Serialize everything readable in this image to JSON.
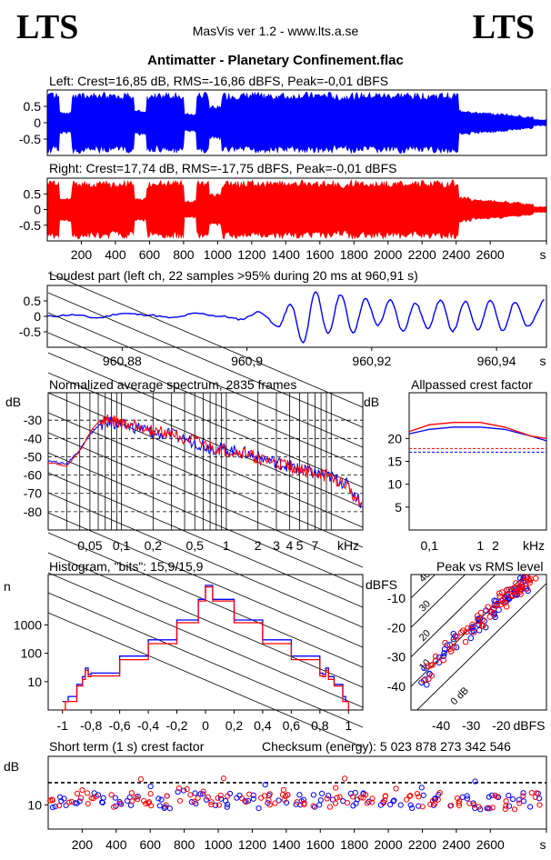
{
  "header": {
    "logo_left": "LTS",
    "logo_right": "LTS",
    "app": "MasVis ver 1.2 - www.lts.a.se",
    "file_title": "Antimatter - Planetary Confinement.flac"
  },
  "colors": {
    "left": "#0000ff",
    "right": "#ff0000",
    "axis": "#000000"
  },
  "chart_data": [
    {
      "type": "area",
      "id": "wave_left",
      "title": "Left: Crest=16,85 dB, RMS=-16,86 dBFS, Peak=-0,01 dBFS",
      "ylim": [
        -1,
        1
      ],
      "y_ticks": [
        "0.5",
        "0",
        "-0.5"
      ],
      "xlim": [
        0,
        2930
      ],
      "series": [
        {
          "name": "Left",
          "values": [
            0.97,
            0.35,
            0.98,
            0.95,
            0.98,
            0.9,
            0.97,
            0.4,
            0.93,
            0.98,
            0.97,
            0.3,
            0.98,
            0.55,
            0.97,
            0.96,
            0.98,
            0.96,
            0.97,
            0.94,
            0.98,
            0.97,
            0.98,
            0.9,
            0.98,
            0.97,
            0.98,
            0.96,
            0.98,
            0.95,
            0.98,
            0.97,
            0.98,
            0.42,
            0.35,
            0.32,
            0.3,
            0.25,
            0.2,
            0.1
          ]
        }
      ]
    },
    {
      "type": "area",
      "id": "wave_right",
      "title": "Right: Crest=17,74 dB, RMS=-17,75 dBFS, Peak=-0,01 dBFS",
      "ylim": [
        -1,
        1
      ],
      "y_ticks": [
        "0.5",
        "0",
        "-0.5"
      ],
      "x_ticks": [
        "200",
        "400",
        "600",
        "800",
        "1000",
        "1200",
        "1400",
        "1600",
        "1800",
        "2000",
        "2200",
        "2400",
        "2600",
        "s"
      ],
      "xlim": [
        0,
        2930
      ],
      "series": [
        {
          "name": "Right",
          "values": [
            0.97,
            0.4,
            0.98,
            0.95,
            0.98,
            0.9,
            0.97,
            0.4,
            0.93,
            0.98,
            0.97,
            0.3,
            0.98,
            0.55,
            0.97,
            0.96,
            0.98,
            0.96,
            0.97,
            0.94,
            0.98,
            0.97,
            0.98,
            0.9,
            0.98,
            0.97,
            0.98,
            0.96,
            0.98,
            0.95,
            0.98,
            0.97,
            0.98,
            0.42,
            0.35,
            0.32,
            0.3,
            0.25,
            0.2,
            0.1
          ]
        }
      ]
    },
    {
      "type": "line",
      "id": "loudest",
      "title": "Loudest part (left  ch, 22 samples >95% during 20 ms at 960,91 s)",
      "xlim": [
        960.868,
        960.948
      ],
      "ylim": [
        -1,
        1
      ],
      "y_ticks": [
        "0.5",
        "0",
        "-0.5"
      ],
      "x_ticks": [
        {
          "v": 960.88,
          "label": "960,88"
        },
        {
          "v": 960.9,
          "label": "960,9"
        },
        {
          "v": 960.92,
          "label": "960,92"
        },
        {
          "v": 960.94,
          "label": "960,94"
        }
      ],
      "x_unit": "s",
      "series": [
        {
          "name": "Left",
          "x": [
            960.868,
            960.872,
            960.876,
            960.88,
            960.884,
            960.888,
            960.892,
            960.896,
            960.899,
            960.902,
            960.905,
            960.907,
            960.909,
            960.911,
            960.913,
            960.915,
            960.917,
            960.919,
            960.921,
            960.923,
            960.925,
            960.927,
            960.929,
            960.931,
            960.933,
            960.935,
            960.937,
            960.939,
            960.941,
            960.943,
            960.945,
            960.948
          ],
          "y": [
            0.0,
            0.05,
            -0.05,
            0.1,
            0.05,
            -0.05,
            0.1,
            0.0,
            -0.1,
            0.15,
            -0.35,
            0.4,
            -0.9,
            0.85,
            -0.6,
            0.75,
            -0.55,
            0.6,
            -0.3,
            0.55,
            -0.5,
            0.45,
            -0.4,
            0.55,
            -0.5,
            0.5,
            -0.45,
            0.55,
            -0.5,
            0.5,
            -0.35,
            0.6
          ]
        }
      ]
    },
    {
      "type": "line",
      "id": "spectrum",
      "title": "Normalized average spectrum, 2835 frames",
      "ylabel": "dB",
      "xunit": "kHz",
      "xscale": "log",
      "xlim": [
        0.02,
        20
      ],
      "ylim": [
        -90,
        -15
      ],
      "y_ticks": [
        -30,
        -40,
        -50,
        -60,
        -70,
        -80
      ],
      "x_ticks": [
        {
          "v": 0.05,
          "label": "0,05"
        },
        {
          "v": 0.1,
          "label": "0,1"
        },
        {
          "v": 0.2,
          "label": "0,2"
        },
        {
          "v": 0.5,
          "label": "0,5"
        },
        {
          "v": 1,
          "label": "1"
        },
        {
          "v": 2,
          "label": "2"
        },
        {
          "v": 3,
          "label": "3"
        },
        {
          "v": 4,
          "label": "4"
        },
        {
          "v": 5,
          "label": "5"
        },
        {
          "v": 7,
          "label": "7"
        }
      ],
      "series": [
        {
          "name": "Left",
          "x": [
            0.02,
            0.03,
            0.04,
            0.05,
            0.06,
            0.08,
            0.1,
            0.15,
            0.2,
            0.3,
            0.5,
            0.7,
            1,
            1.5,
            2,
            3,
            4,
            5,
            7,
            10,
            14,
            20
          ],
          "y": [
            -52,
            -54,
            -46,
            -38,
            -33,
            -31,
            -33,
            -34,
            -37,
            -38,
            -42,
            -45,
            -46,
            -48,
            -50,
            -53,
            -55,
            -57,
            -59,
            -61,
            -65,
            -76
          ]
        },
        {
          "name": "Right",
          "x": [
            0.02,
            0.03,
            0.04,
            0.05,
            0.06,
            0.08,
            0.1,
            0.15,
            0.2,
            0.3,
            0.5,
            0.7,
            1,
            1.5,
            2,
            3,
            4,
            5,
            7,
            10,
            14,
            20
          ],
          "y": [
            -53,
            -55,
            -47,
            -37,
            -31,
            -30,
            -32,
            -33,
            -36,
            -37,
            -42,
            -45,
            -47,
            -48,
            -51,
            -54,
            -55,
            -57,
            -59,
            -61,
            -66,
            -77
          ]
        }
      ]
    },
    {
      "type": "line",
      "id": "allpassed",
      "title": "Allpassed crest factor",
      "ylabel": "dB",
      "xunit": "kHz",
      "xscale": "log",
      "xlim": [
        0.04,
        20
      ],
      "ylim": [
        0,
        30
      ],
      "y_ticks": [
        20,
        15,
        10,
        5
      ],
      "x_ticks": [
        {
          "v": 0.1,
          "label": "0,1"
        },
        {
          "v": 1,
          "label": "1"
        },
        {
          "v": 2,
          "label": "2"
        }
      ],
      "series": [
        {
          "name": "Left",
          "x": [
            0.04,
            0.1,
            0.3,
            1,
            3,
            10,
            20
          ],
          "y": [
            21.0,
            22.0,
            22.5,
            22.5,
            22.0,
            20.5,
            19.5
          ]
        },
        {
          "name": "Right",
          "x": [
            0.04,
            0.1,
            0.3,
            1,
            3,
            10,
            20
          ],
          "y": [
            21.5,
            23.0,
            23.5,
            23.5,
            22.5,
            20.5,
            20.0
          ]
        }
      ],
      "reference_lines": [
        {
          "name": "Left",
          "y": 17.0
        },
        {
          "name": "Right",
          "y": 17.8
        }
      ]
    },
    {
      "type": "line",
      "id": "histogram",
      "title": "Histogram, \"bits\": 15,9/15,9",
      "ylabel": "n",
      "yscale": "log",
      "xlim": [
        -1.1,
        1.1
      ],
      "ylim": [
        1,
        60000
      ],
      "y_ticks": [
        {
          "v": 1000,
          "label": "1000"
        },
        {
          "v": 100,
          "label": "100"
        },
        {
          "v": 10,
          "label": "10"
        }
      ],
      "x_ticks": [
        "-1",
        "-0,8",
        "-0,6",
        "-0,4",
        "-0,2",
        "0",
        "0,2",
        "0,4",
        "0,6",
        "0,8",
        "1"
      ],
      "series": [
        {
          "name": "Left",
          "x": [
            -1.0,
            -0.98,
            -0.96,
            -0.9,
            -0.86,
            -0.84,
            -0.82,
            -0.8,
            -0.6,
            -0.4,
            -0.2,
            -0.05,
            0.0,
            0.05,
            0.2,
            0.4,
            0.6,
            0.8,
            0.82,
            0.84,
            0.86,
            0.9,
            0.96,
            0.98,
            1.0
          ],
          "y": [
            2,
            2,
            3,
            8,
            15,
            30,
            18,
            20,
            80,
            300,
            1500,
            8000,
            25000,
            8000,
            1500,
            300,
            80,
            20,
            18,
            30,
            15,
            8,
            3,
            2,
            2
          ]
        },
        {
          "name": "Right",
          "x": [
            -1.0,
            -0.98,
            -0.96,
            -0.9,
            -0.86,
            -0.84,
            -0.82,
            -0.8,
            -0.6,
            -0.4,
            -0.2,
            -0.05,
            0.0,
            0.05,
            0.2,
            0.4,
            0.6,
            0.8,
            0.82,
            0.84,
            0.86,
            0.9,
            0.96,
            0.98,
            1.0
          ],
          "y": [
            1,
            2,
            2,
            7,
            12,
            25,
            15,
            16,
            60,
            220,
            1200,
            7000,
            22000,
            7000,
            1200,
            220,
            60,
            16,
            15,
            25,
            12,
            7,
            2,
            2,
            1
          ]
        }
      ]
    },
    {
      "type": "scatter",
      "id": "peak_vs_rms",
      "title": "Peak vs RMS level",
      "ylabel": "dBFS",
      "xlabel": "dBFS",
      "xlim": [
        -50,
        -5
      ],
      "ylim": [
        -48,
        -2
      ],
      "y_ticks": [
        -10,
        -20,
        -30,
        -40
      ],
      "x_ticks": [
        -40,
        -30,
        -20
      ],
      "diagonals": [
        "0 dB",
        "10",
        "20",
        "30",
        "40"
      ],
      "series": [
        {
          "name": "Left",
          "x": [
            -46,
            -44,
            -41,
            -38,
            -36,
            -34,
            -31,
            -29,
            -27,
            -26,
            -24,
            -23,
            -21,
            -20,
            -19,
            -18,
            -17,
            -16,
            -15,
            -14,
            -13,
            -12,
            -11
          ],
          "y": [
            -38,
            -35,
            -31,
            -28,
            -26,
            -24,
            -22,
            -20,
            -18,
            -17,
            -15,
            -14,
            -12,
            -11,
            -10,
            -9,
            -9,
            -8,
            -7,
            -6,
            -6,
            -5,
            -4
          ]
        },
        {
          "name": "Right",
          "x": [
            -45,
            -43,
            -40,
            -37,
            -35,
            -33,
            -30,
            -28,
            -26,
            -25,
            -23,
            -22,
            -20,
            -19,
            -18,
            -17,
            -16,
            -15,
            -14,
            -13,
            -12,
            -11,
            -10
          ],
          "y": [
            -36,
            -33,
            -30,
            -27,
            -25,
            -23,
            -21,
            -19,
            -17,
            -16,
            -14,
            -13,
            -11,
            -10,
            -9,
            -8,
            -8,
            -7,
            -6,
            -5,
            -5,
            -4,
            -3
          ]
        }
      ]
    },
    {
      "type": "scatter",
      "id": "short_term_crest",
      "title": "Short term (1 s) crest factor",
      "ylabel": "dB",
      "y_tick": "10",
      "checksum_label": "Checksum (energy):  5 023 878 273 342 546",
      "xlim": [
        0,
        2930
      ],
      "ylim": [
        0,
        30
      ],
      "x_ticks": [
        "200",
        "400",
        "600",
        "800",
        "1000",
        "1200",
        "1400",
        "1600",
        "1800",
        "2000",
        "2200",
        "2400",
        "2600",
        "s"
      ],
      "reference_lines": [
        {
          "name": "Left",
          "y": 19.0
        },
        {
          "name": "Right",
          "y": 19.3
        }
      ],
      "series": [
        {
          "name": "Left",
          "x": [
            50,
            250,
            450,
            650,
            850,
            1050,
            1250,
            1450,
            1650,
            1850,
            2050,
            2250,
            2450,
            2650,
            2850
          ],
          "y": [
            11,
            12,
            11,
            11,
            13,
            12,
            11,
            12,
            12,
            12,
            11,
            12,
            11,
            11,
            12
          ]
        },
        {
          "name": "Right",
          "x": [
            50,
            250,
            450,
            650,
            850,
            1050,
            1250,
            1450,
            1650,
            1850,
            2050,
            2250,
            2450,
            2650,
            2850
          ],
          "y": [
            12,
            13,
            12,
            12,
            14,
            12,
            12,
            13,
            12,
            13,
            12,
            12,
            12,
            11,
            12
          ]
        }
      ]
    }
  ]
}
